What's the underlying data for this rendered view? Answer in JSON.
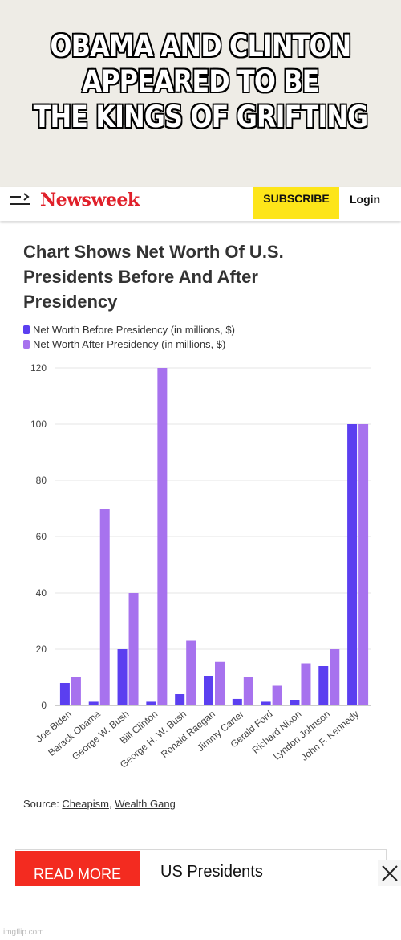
{
  "meme": {
    "lines": [
      "OBAMA AND CLINTON",
      "APPEARED TO BE",
      "THE KINGS OF GRIFTING"
    ]
  },
  "header": {
    "menu_icon": "menu-arrow-icon",
    "logo": "Newsweek",
    "subscribe_label": "SUBSCRIBE",
    "login_label": "Login",
    "logo_color": "#e0202a",
    "subscribe_color": "#fde519"
  },
  "chart_title_lines": [
    "Chart Shows Net Worth Of U.S.",
    "Presidents Before And After",
    "Presidency"
  ],
  "source": {
    "prefix": "Source: ",
    "link1": "Cheapism",
    "separator": ", ",
    "link2": "Wealth Gang"
  },
  "readmore": {
    "label": "READ MORE",
    "text": "US Presidents",
    "close_icon": "close-icon",
    "label_color": "#f32b20"
  },
  "watermark": "imgflip.com",
  "chart_data": {
    "type": "bar",
    "title": "Chart Shows Net Worth Of U.S. Presidents Before And After Presidency",
    "categories": [
      "Joe Biden",
      "Barack Obama",
      "George W. Bush",
      "Bill Clinton",
      "George H. W. Bush",
      "Ronald Raegan",
      "Jimmy Carter",
      "Gerald Ford",
      "Richard Nixon",
      "Lyndon Johnson",
      "John F. Kennedy"
    ],
    "series": [
      {
        "name": "Net Worth Before Presidency (in millions, $)",
        "color": "#5b3ff0",
        "values": [
          8,
          1.3,
          20,
          1.3,
          4,
          10.5,
          2.3,
          1.3,
          2,
          14,
          100
        ]
      },
      {
        "name": "Net Worth After Presidency (in millions, $)",
        "color": "#a772ee",
        "values": [
          10,
          70,
          40,
          120,
          23,
          15.5,
          10,
          7,
          15,
          20,
          100
        ]
      }
    ],
    "yticks": [
      0,
      20,
      40,
      60,
      80,
      100,
      120
    ],
    "ylim": [
      0,
      120
    ],
    "grid": true,
    "legend": "top-left",
    "xlabel": "",
    "ylabel": ""
  }
}
